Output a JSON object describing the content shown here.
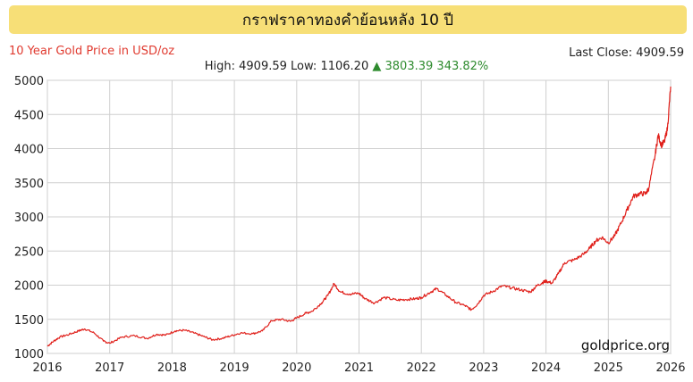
{
  "header": {
    "title": "กราฟราคาทองคำย้อนหลัง 10 ปี",
    "subtitle": "10 Year Gold Price in USD/oz",
    "last_close_label": "Last Close:",
    "last_close_value": "4909.59"
  },
  "stats": {
    "high_label": "High:",
    "high": "4909.59",
    "low_label": "Low:",
    "low": "1106.20",
    "change_arrow": "▲",
    "change": "3803.39",
    "change_pct": "343.82%"
  },
  "brand": "goldprice.org",
  "colors": {
    "title_bg": "#f7df77",
    "line": "#e0201b",
    "subtitle": "#e03a2f",
    "up": "#2e8b2e",
    "grid": "#cfcfcf"
  },
  "chart_data": {
    "type": "line",
    "title": "10 Year Gold Price in USD/oz",
    "xlabel": "",
    "ylabel": "",
    "xlim": [
      2016,
      2026
    ],
    "ylim": [
      1000,
      5000
    ],
    "grid": true,
    "x_ticks": [
      "2016",
      "2017",
      "2018",
      "2019",
      "2020",
      "2021",
      "2022",
      "2023",
      "2024",
      "2025",
      "2026"
    ],
    "y_ticks": [
      "1000",
      "1500",
      "2000",
      "2500",
      "3000",
      "3500",
      "4000",
      "4500",
      "5000"
    ],
    "series": [
      {
        "x": [
          2016.0,
          2016.1,
          2016.2,
          2016.35,
          2016.5,
          2016.6,
          2016.75,
          2016.9,
          2017.0,
          2017.2,
          2017.4,
          2017.6,
          2017.75,
          2017.9,
          2018.05,
          2018.2,
          2018.35,
          2018.5,
          2018.65,
          2018.8,
          2018.95,
          2019.1,
          2019.3,
          2019.45,
          2019.6,
          2019.75,
          2019.9,
          2020.0,
          2020.15,
          2020.25,
          2020.4,
          2020.5,
          2020.6,
          2020.7,
          2020.85,
          2021.0,
          2021.1,
          2021.25,
          2021.4,
          2021.6,
          2021.75,
          2021.9,
          2022.0,
          2022.15,
          2022.25,
          2022.4,
          2022.55,
          2022.7,
          2022.8,
          2022.9,
          2023.0,
          2023.15,
          2023.3,
          2023.45,
          2023.6,
          2023.75,
          2023.85,
          2023.95,
          2024.0,
          2024.1,
          2024.2,
          2024.3,
          2024.45,
          2024.6,
          2024.7,
          2024.8,
          2024.9,
          2025.0,
          2025.1,
          2025.2,
          2025.3,
          2025.4,
          2025.5,
          2025.6,
          2025.65,
          2025.75,
          2025.8,
          2025.85,
          2025.9,
          2025.95,
          2026.0
        ],
        "values": [
          1106,
          1180,
          1240,
          1280,
          1330,
          1360,
          1300,
          1180,
          1150,
          1240,
          1260,
          1220,
          1280,
          1270,
          1330,
          1340,
          1300,
          1250,
          1200,
          1220,
          1260,
          1300,
          1290,
          1330,
          1480,
          1500,
          1470,
          1520,
          1590,
          1620,
          1740,
          1850,
          2020,
          1900,
          1870,
          1880,
          1800,
          1740,
          1820,
          1780,
          1790,
          1800,
          1820,
          1900,
          1950,
          1850,
          1750,
          1700,
          1640,
          1720,
          1850,
          1910,
          1990,
          1960,
          1930,
          1900,
          1990,
          2040,
          2060,
          2030,
          2170,
          2330,
          2370,
          2450,
          2540,
          2650,
          2700,
          2620,
          2720,
          2900,
          3100,
          3300,
          3340,
          3340,
          3420,
          3900,
          4200,
          4050,
          4100,
          4300,
          4909
        ]
      }
    ]
  }
}
